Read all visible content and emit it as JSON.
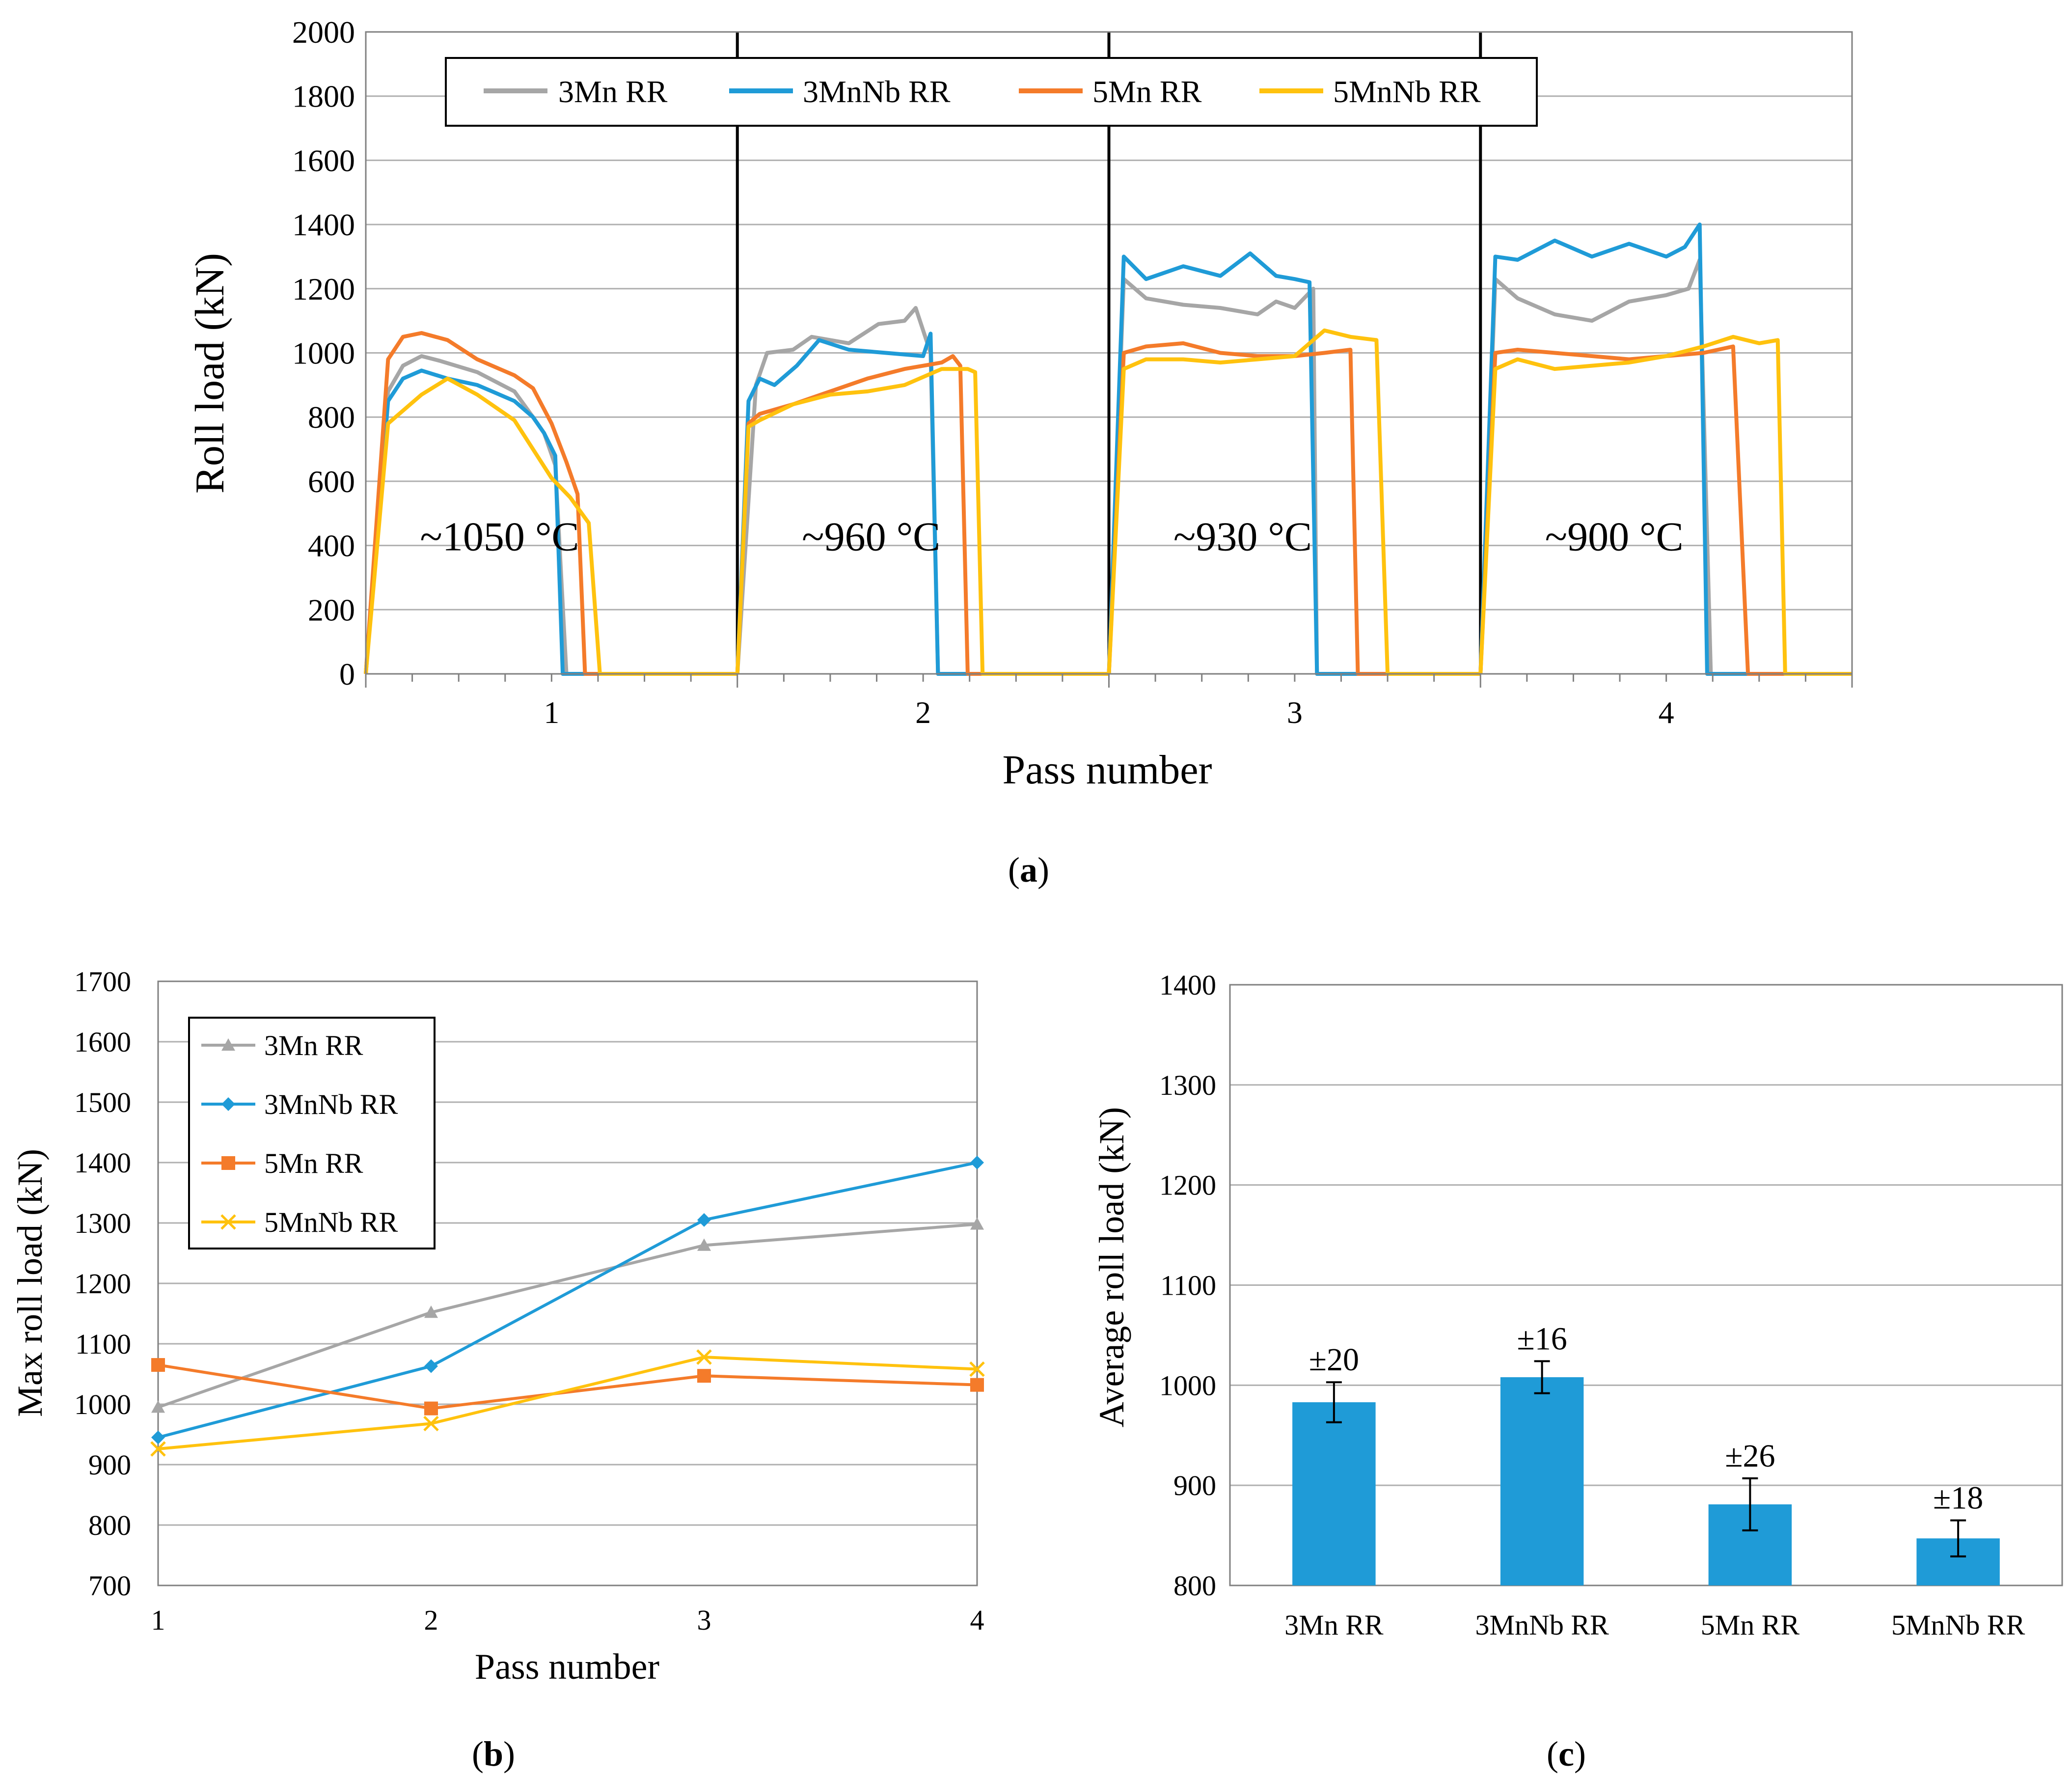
{
  "colors": {
    "gray": "#A6A6A6",
    "blue": "#1F9BD7",
    "orange": "#F47B2A",
    "yellow": "#FFC20E",
    "bar": "#1F9BD7"
  },
  "chart_data": [
    {
      "panel_label": "a",
      "type": "line",
      "title": "",
      "xlabel": "Pass number",
      "ylabel": "Roll load (kN)",
      "xlim": [
        0.5,
        4.5
      ],
      "ylim": [
        0,
        2000
      ],
      "y_ticks": [
        0,
        200,
        400,
        600,
        800,
        1000,
        1200,
        1400,
        1600,
        1800,
        2000
      ],
      "x_ticks": [
        1,
        2,
        3,
        4
      ],
      "legend_position": "top-center",
      "pass_separators": [
        1.5,
        2.5,
        3.5
      ],
      "annotations": [
        "~1050 °C",
        "~960 °C",
        "~930 °C",
        "~900 °C"
      ],
      "series": [
        {
          "name": "3Mn RR",
          "color_key": "gray",
          "segments": [
            [
              [
                0.5,
                0
              ],
              [
                0.56,
                880
              ],
              [
                0.6,
                960
              ],
              [
                0.65,
                990
              ],
              [
                0.7,
                975
              ],
              [
                0.8,
                940
              ],
              [
                0.9,
                880
              ],
              [
                0.95,
                800
              ],
              [
                0.98,
                750
              ],
              [
                1.01,
                650
              ],
              [
                1.04,
                0
              ],
              [
                1.5,
                0
              ]
            ],
            [
              [
                1.5,
                0
              ],
              [
                1.55,
                900
              ],
              [
                1.58,
                1000
              ],
              [
                1.65,
                1010
              ],
              [
                1.7,
                1050
              ],
              [
                1.8,
                1030
              ],
              [
                1.88,
                1090
              ],
              [
                1.95,
                1100
              ],
              [
                1.98,
                1140
              ],
              [
                2.02,
                1000
              ],
              [
                2.04,
                0
              ],
              [
                2.5,
                0
              ]
            ],
            [
              [
                2.5,
                0
              ],
              [
                2.54,
                1230
              ],
              [
                2.6,
                1170
              ],
              [
                2.7,
                1150
              ],
              [
                2.8,
                1140
              ],
              [
                2.9,
                1120
              ],
              [
                2.95,
                1160
              ],
              [
                3.0,
                1140
              ],
              [
                3.05,
                1200
              ],
              [
                3.06,
                0
              ],
              [
                3.5,
                0
              ]
            ],
            [
              [
                3.5,
                0
              ],
              [
                3.54,
                1230
              ],
              [
                3.6,
                1170
              ],
              [
                3.7,
                1120
              ],
              [
                3.8,
                1100
              ],
              [
                3.9,
                1160
              ],
              [
                4.0,
                1180
              ],
              [
                4.06,
                1200
              ],
              [
                4.09,
                1290
              ],
              [
                4.12,
                0
              ],
              [
                4.5,
                0
              ]
            ]
          ]
        },
        {
          "name": "3MnNb RR",
          "color_key": "blue",
          "segments": [
            [
              [
                0.5,
                0
              ],
              [
                0.56,
                850
              ],
              [
                0.6,
                920
              ],
              [
                0.65,
                945
              ],
              [
                0.72,
                920
              ],
              [
                0.8,
                900
              ],
              [
                0.9,
                850
              ],
              [
                0.95,
                800
              ],
              [
                0.98,
                750
              ],
              [
                1.01,
                680
              ],
              [
                1.03,
                0
              ],
              [
                1.5,
                0
              ]
            ],
            [
              [
                1.5,
                0
              ],
              [
                1.53,
                850
              ],
              [
                1.56,
                920
              ],
              [
                1.6,
                900
              ],
              [
                1.66,
                960
              ],
              [
                1.72,
                1040
              ],
              [
                1.8,
                1010
              ],
              [
                1.9,
                1000
              ],
              [
                2.0,
                990
              ],
              [
                2.02,
                1060
              ],
              [
                2.04,
                0
              ],
              [
                2.5,
                0
              ]
            ],
            [
              [
                2.5,
                0
              ],
              [
                2.54,
                1300
              ],
              [
                2.6,
                1230
              ],
              [
                2.7,
                1270
              ],
              [
                2.8,
                1240
              ],
              [
                2.88,
                1310
              ],
              [
                2.95,
                1240
              ],
              [
                3.0,
                1230
              ],
              [
                3.04,
                1220
              ],
              [
                3.06,
                0
              ],
              [
                3.5,
                0
              ]
            ],
            [
              [
                3.5,
                0
              ],
              [
                3.54,
                1300
              ],
              [
                3.6,
                1290
              ],
              [
                3.7,
                1350
              ],
              [
                3.8,
                1300
              ],
              [
                3.9,
                1340
              ],
              [
                4.0,
                1300
              ],
              [
                4.05,
                1330
              ],
              [
                4.09,
                1400
              ],
              [
                4.11,
                0
              ],
              [
                4.5,
                0
              ]
            ]
          ]
        },
        {
          "name": "5Mn RR",
          "color_key": "orange",
          "segments": [
            [
              [
                0.5,
                0
              ],
              [
                0.56,
                980
              ],
              [
                0.6,
                1050
              ],
              [
                0.65,
                1062
              ],
              [
                0.72,
                1040
              ],
              [
                0.8,
                980
              ],
              [
                0.9,
                930
              ],
              [
                0.95,
                890
              ],
              [
                1.0,
                780
              ],
              [
                1.04,
                660
              ],
              [
                1.07,
                560
              ],
              [
                1.09,
                0
              ],
              [
                1.5,
                0
              ]
            ],
            [
              [
                1.5,
                0
              ],
              [
                1.53,
                780
              ],
              [
                1.56,
                810
              ],
              [
                1.65,
                840
              ],
              [
                1.75,
                880
              ],
              [
                1.85,
                920
              ],
              [
                1.95,
                950
              ],
              [
                2.05,
                970
              ],
              [
                2.08,
                990
              ],
              [
                2.1,
                960
              ],
              [
                2.12,
                0
              ],
              [
                2.5,
                0
              ]
            ],
            [
              [
                2.5,
                0
              ],
              [
                2.54,
                1000
              ],
              [
                2.6,
                1020
              ],
              [
                2.7,
                1030
              ],
              [
                2.8,
                1000
              ],
              [
                2.9,
                990
              ],
              [
                3.0,
                990
              ],
              [
                3.08,
                1000
              ],
              [
                3.15,
                1010
              ],
              [
                3.17,
                0
              ],
              [
                3.5,
                0
              ]
            ],
            [
              [
                3.5,
                0
              ],
              [
                3.54,
                1000
              ],
              [
                3.6,
                1010
              ],
              [
                3.7,
                1000
              ],
              [
                3.8,
                990
              ],
              [
                3.9,
                980
              ],
              [
                4.0,
                990
              ],
              [
                4.1,
                1000
              ],
              [
                4.18,
                1020
              ],
              [
                4.22,
                0
              ],
              [
                4.5,
                0
              ]
            ]
          ]
        },
        {
          "name": "5MnNb RR",
          "color_key": "yellow",
          "segments": [
            [
              [
                0.5,
                0
              ],
              [
                0.56,
                780
              ],
              [
                0.6,
                820
              ],
              [
                0.65,
                870
              ],
              [
                0.72,
                920
              ],
              [
                0.8,
                870
              ],
              [
                0.9,
                790
              ],
              [
                0.95,
                700
              ],
              [
                1.0,
                610
              ],
              [
                1.05,
                550
              ],
              [
                1.1,
                470
              ],
              [
                1.13,
                0
              ],
              [
                1.5,
                0
              ]
            ],
            [
              [
                1.5,
                0
              ],
              [
                1.53,
                770
              ],
              [
                1.56,
                790
              ],
              [
                1.65,
                840
              ],
              [
                1.75,
                870
              ],
              [
                1.85,
                880
              ],
              [
                1.95,
                900
              ],
              [
                2.05,
                950
              ],
              [
                2.12,
                950
              ],
              [
                2.14,
                940
              ],
              [
                2.16,
                0
              ],
              [
                2.5,
                0
              ]
            ],
            [
              [
                2.5,
                0
              ],
              [
                2.54,
                950
              ],
              [
                2.6,
                980
              ],
              [
                2.7,
                980
              ],
              [
                2.8,
                970
              ],
              [
                2.9,
                980
              ],
              [
                3.0,
                990
              ],
              [
                3.08,
                1070
              ],
              [
                3.15,
                1050
              ],
              [
                3.22,
                1040
              ],
              [
                3.25,
                0
              ],
              [
                3.5,
                0
              ]
            ],
            [
              [
                3.5,
                0
              ],
              [
                3.54,
                950
              ],
              [
                3.6,
                980
              ],
              [
                3.7,
                950
              ],
              [
                3.8,
                960
              ],
              [
                3.9,
                970
              ],
              [
                4.0,
                990
              ],
              [
                4.1,
                1020
              ],
              [
                4.18,
                1050
              ],
              [
                4.25,
                1030
              ],
              [
                4.3,
                1040
              ],
              [
                4.32,
                0
              ],
              [
                4.5,
                0
              ]
            ]
          ]
        }
      ]
    },
    {
      "panel_label": "b",
      "type": "line",
      "title": "",
      "xlabel": "Pass number",
      "ylabel": "Max roll load (kN)",
      "xlim": [
        1,
        4
      ],
      "ylim": [
        700,
        1700
      ],
      "y_ticks": [
        700,
        800,
        900,
        1000,
        1100,
        1200,
        1300,
        1400,
        1500,
        1600,
        1700
      ],
      "x": [
        1,
        2,
        3,
        4
      ],
      "legend_position": "top-left",
      "series": [
        {
          "name": "3Mn RR",
          "color_key": "gray",
          "marker": "triangle",
          "values": [
            995,
            1152,
            1263,
            1298
          ]
        },
        {
          "name": "3MnNb RR",
          "color_key": "blue",
          "marker": "diamond",
          "values": [
            945,
            1063,
            1305,
            1400
          ]
        },
        {
          "name": "5Mn RR",
          "color_key": "orange",
          "marker": "square",
          "values": [
            1065,
            993,
            1047,
            1032
          ]
        },
        {
          "name": "5MnNb RR",
          "color_key": "yellow",
          "marker": "x",
          "values": [
            926,
            968,
            1078,
            1058
          ]
        }
      ]
    },
    {
      "panel_label": "c",
      "type": "bar",
      "title": "",
      "xlabel": "",
      "ylabel": "Average  roll load (kN)",
      "ylim": [
        800,
        1400
      ],
      "y_ticks": [
        800,
        900,
        1000,
        1100,
        1200,
        1300,
        1400
      ],
      "categories": [
        "3Mn RR",
        "3MnNb RR",
        "5Mn RR",
        "5MnNb RR"
      ],
      "values": [
        983,
        1008,
        881,
        847
      ],
      "errors": [
        20,
        16,
        26,
        18
      ],
      "error_labels": [
        "±20",
        "±16",
        "±26",
        "±18"
      ]
    }
  ]
}
